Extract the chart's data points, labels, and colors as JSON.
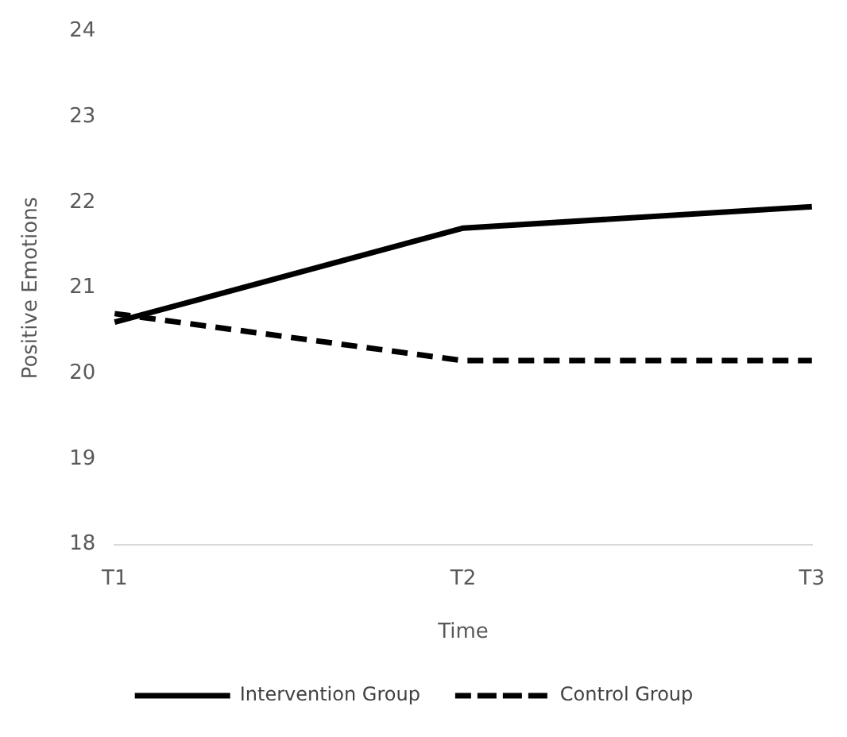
{
  "chart_data": {
    "type": "line",
    "xlabel": "Time",
    "ylabel": "Positive Emotions",
    "categories": [
      "T1",
      "T2",
      "T3"
    ],
    "series": [
      {
        "name": "Intervention Group",
        "color": "#000000",
        "values": [
          20.6,
          21.7,
          21.95
        ],
        "line_style": "solid"
      },
      {
        "name": "Control Group",
        "color": "#000000",
        "values": [
          20.7,
          20.15,
          20.15
        ],
        "line_style": "dashed"
      }
    ],
    "ylim": [
      18,
      24
    ],
    "yticks": [
      18,
      19,
      20,
      21,
      22,
      23,
      24
    ],
    "grid": false,
    "legend": "bottom",
    "marker": "none"
  }
}
